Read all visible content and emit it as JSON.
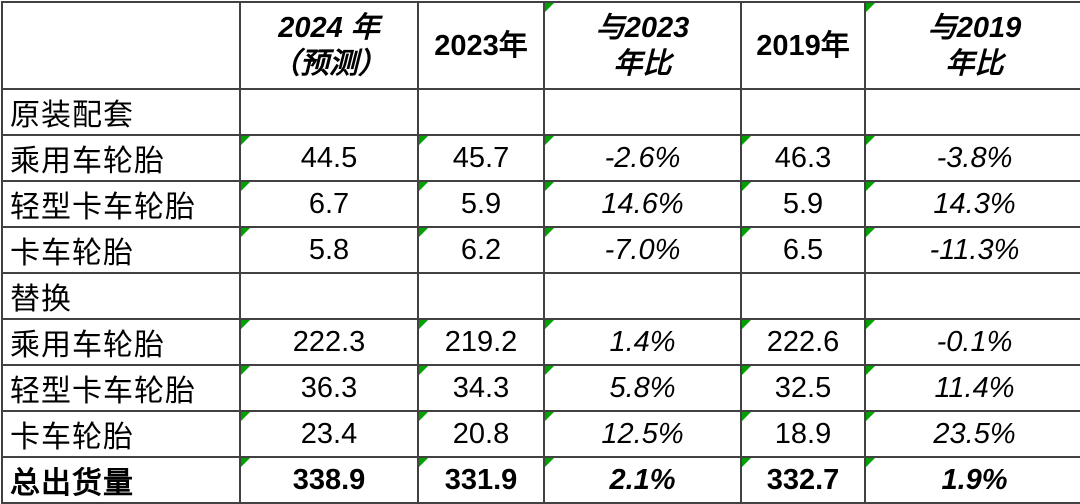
{
  "table": {
    "title_semantic": "tire-shipments-comparison-table",
    "colors": {
      "border": "#414141",
      "text": "#000000",
      "error_indicator_green": "#00a000",
      "background": "#ffffff"
    },
    "columns": [
      {
        "id": "row-label",
        "lines": [],
        "italic": false,
        "marker": false
      },
      {
        "id": "2024-forecast",
        "lines": [
          "2024 年",
          "（预测）"
        ],
        "italic": true,
        "marker": false
      },
      {
        "id": "2023",
        "lines": [
          "2023年"
        ],
        "italic": false,
        "marker": false
      },
      {
        "id": "vs-2023",
        "lines": [
          "与2023",
          "年比"
        ],
        "italic": true,
        "marker": true
      },
      {
        "id": "2019",
        "lines": [
          "2019年"
        ],
        "italic": false,
        "marker": false
      },
      {
        "id": "vs-2019",
        "lines": [
          "与2019",
          "年比"
        ],
        "italic": true,
        "marker": true
      }
    ],
    "rows": [
      {
        "label": "原装配套",
        "type": "section",
        "values": [
          "",
          "",
          "",
          "",
          ""
        ]
      },
      {
        "label": "乘用车轮胎",
        "type": "data",
        "values": [
          "44.5",
          "45.7",
          "-2.6%",
          "46.3",
          "-3.8%"
        ]
      },
      {
        "label": "轻型卡车轮胎",
        "type": "data",
        "values": [
          "6.7",
          "5.9",
          "14.6%",
          "5.9",
          "14.3%"
        ]
      },
      {
        "label": "卡车轮胎",
        "type": "data",
        "values": [
          "5.8",
          "6.2",
          "-7.0%",
          "6.5",
          "-11.3%"
        ]
      },
      {
        "label": "替换",
        "type": "section",
        "values": [
          "",
          "",
          "",
          "",
          ""
        ]
      },
      {
        "label": "乘用车轮胎",
        "type": "data",
        "values": [
          "222.3",
          "219.2",
          "1.4%",
          "222.6",
          "-0.1%"
        ]
      },
      {
        "label": "轻型卡车轮胎",
        "type": "data",
        "values": [
          "36.3",
          "34.3",
          "5.8%",
          "32.5",
          "11.4%"
        ]
      },
      {
        "label": "卡车轮胎",
        "type": "data",
        "values": [
          "23.4",
          "20.8",
          "12.5%",
          "18.9",
          "23.5%"
        ]
      },
      {
        "label": "总出货量",
        "type": "total",
        "values": [
          "338.9",
          "331.9",
          "2.1%",
          "332.7",
          "1.9%"
        ]
      }
    ]
  }
}
